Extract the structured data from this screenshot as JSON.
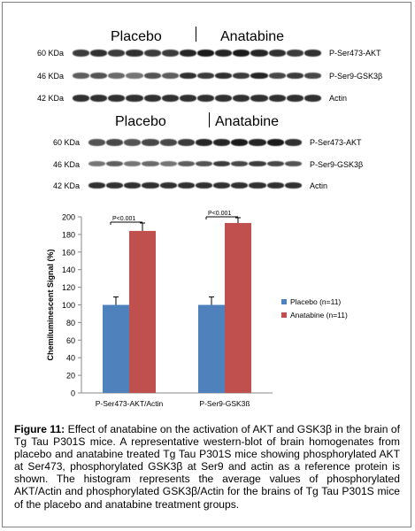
{
  "blot1": {
    "group_placebo": "Placebo",
    "group_anatabine": "Anatabine",
    "rows": [
      {
        "kda": "60 KDa",
        "protein": "P-Ser473-AKT",
        "intensity": [
          0.85,
          0.9,
          0.85,
          0.9,
          0.85,
          0.85,
          0.95,
          1.0,
          0.95,
          1.0,
          0.95,
          0.9,
          0.85,
          0.9
        ]
      },
      {
        "kda": "46 KDa",
        "protein": "P-Ser9-GSK3β",
        "intensity": [
          0.7,
          0.75,
          0.65,
          0.6,
          0.75,
          0.7,
          0.9,
          0.85,
          0.9,
          0.85,
          0.95,
          0.8,
          0.85,
          0.8
        ]
      },
      {
        "kda": "42 KDa",
        "protein": "Actin",
        "intensity": [
          0.9,
          0.9,
          0.9,
          0.9,
          0.9,
          0.9,
          0.9,
          0.9,
          0.9,
          0.9,
          0.9,
          0.9,
          0.9,
          0.9
        ]
      }
    ]
  },
  "blot2": {
    "group_placebo": "Placebo",
    "group_anatabine": "Anatabine",
    "rows": [
      {
        "kda": "60 KDa",
        "protein": "P-Ser473-AKT",
        "intensity": [
          0.75,
          0.8,
          0.75,
          0.8,
          0.8,
          0.85,
          0.95,
          0.95,
          1.0,
          0.95,
          1.0,
          0.9
        ]
      },
      {
        "kda": "46 KDa",
        "protein": "P-Ser9-GSK3β",
        "intensity": [
          0.6,
          0.7,
          0.6,
          0.65,
          0.6,
          0.7,
          0.75,
          0.85,
          0.8,
          0.85,
          0.8,
          0.75
        ]
      },
      {
        "kda": "42 KDa",
        "protein": "Actin",
        "intensity": [
          0.9,
          0.9,
          0.9,
          0.9,
          0.9,
          0.9,
          0.9,
          0.9,
          0.9,
          0.9,
          0.9,
          0.9
        ]
      }
    ]
  },
  "chart_data": {
    "type": "bar",
    "categories": [
      "P-Ser473-AKT/Actin",
      "P-Ser9-GSK3ß"
    ],
    "series": [
      {
        "name": "Placebo (n=11)",
        "values": [
          100,
          100
        ],
        "errors": [
          9,
          9
        ],
        "color": "#4f81bd"
      },
      {
        "name": "Anatabine (n=11)",
        "values": [
          184,
          193
        ],
        "errors": [
          9,
          6
        ],
        "color": "#c0504d"
      }
    ],
    "annotations": [
      "P<0.001",
      "P<0.001"
    ],
    "ylabel": "Chemiluminescent Signal (%)",
    "ylim": [
      0,
      200
    ],
    "yticks": [
      0,
      20,
      40,
      60,
      80,
      100,
      120,
      140,
      160,
      180,
      200
    ],
    "grid": false,
    "legend_position": "right"
  },
  "caption": {
    "label": "Figure 11:",
    "text": " Effect of anatabine on the activation of AKT and GSK3β in the brain of Tg Tau P301S mice. A representative western-blot of brain homogenates from placebo and anatabine treated Tg Tau P301S mice showing phosphorylated AKT at Ser473, phosphorylated GSK3β at Ser9 and actin as a reference protein is shown. The histogram represents the average values of phosphorylated AKT/Actin and phosphorylated GSK3β/Actin for the brains of Tg Tau P301S mice of the placebo and anatabine treatment groups."
  }
}
